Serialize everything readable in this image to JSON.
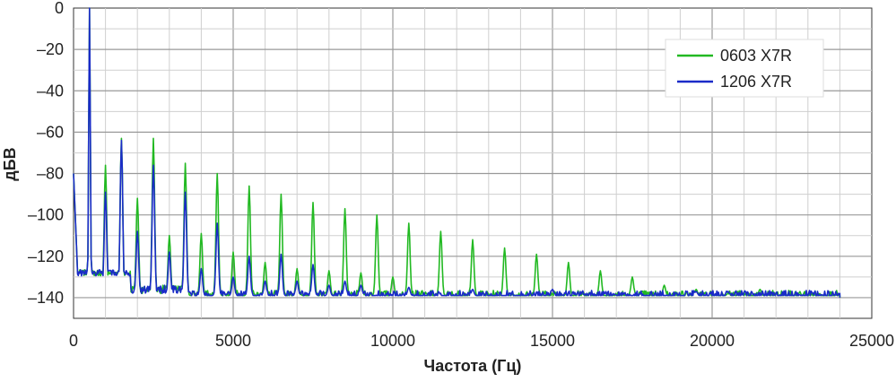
{
  "chart_data": {
    "type": "line",
    "title": "",
    "xlabel": "Частота (Гц)",
    "ylabel": "дБВ",
    "xlim": [
      0,
      25000
    ],
    "ylim": [
      -150,
      0
    ],
    "x_ticks": [
      0,
      5000,
      10000,
      15000,
      20000,
      25000
    ],
    "x_tick_labels": [
      "0",
      "5000",
      "10000",
      "15000",
      "20000",
      "25000"
    ],
    "y_ticks": [
      0,
      -20,
      -40,
      -60,
      -80,
      -100,
      -120,
      -140
    ],
    "y_tick_labels": [
      "0",
      "–20",
      "–40",
      "–60",
      "–80",
      "–100",
      "–120",
      "–140"
    ],
    "grid": true,
    "legend_position": "top-right",
    "noise_floor_db": -139,
    "series": [
      {
        "name": "0603 X7R",
        "color": "#22b922",
        "start": [
          0,
          -80
        ],
        "end": [
          24000,
          -140
        ],
        "peaks": [
          [
            500,
            0
          ],
          [
            1000,
            -76
          ],
          [
            1500,
            -63
          ],
          [
            2000,
            -92
          ],
          [
            2500,
            -63
          ],
          [
            3000,
            -110
          ],
          [
            3500,
            -75
          ],
          [
            4000,
            -109
          ],
          [
            4500,
            -80
          ],
          [
            5000,
            -118
          ],
          [
            5500,
            -86
          ],
          [
            6000,
            -123
          ],
          [
            6500,
            -90
          ],
          [
            7000,
            -126
          ],
          [
            7500,
            -94
          ],
          [
            8000,
            -127
          ],
          [
            8500,
            -97
          ],
          [
            9000,
            -128
          ],
          [
            9500,
            -100
          ],
          [
            10000,
            -130
          ],
          [
            10500,
            -104
          ],
          [
            11500,
            -108
          ],
          [
            12500,
            -112
          ],
          [
            13500,
            -116
          ],
          [
            14500,
            -119
          ],
          [
            15500,
            -123
          ],
          [
            16500,
            -127
          ],
          [
            17500,
            -130
          ],
          [
            18500,
            -134
          ],
          [
            19500,
            -136
          ],
          [
            20500,
            -138
          ],
          [
            21500,
            -136
          ]
        ]
      },
      {
        "name": "1206 X7R",
        "color": "#1a2bc8",
        "start": [
          0,
          -80
        ],
        "end": [
          24000,
          -140
        ],
        "peaks": [
          [
            500,
            0
          ],
          [
            1000,
            -89
          ],
          [
            1500,
            -64
          ],
          [
            2000,
            -108
          ],
          [
            2500,
            -76
          ],
          [
            3000,
            -118
          ],
          [
            3500,
            -89
          ],
          [
            4000,
            -126
          ],
          [
            4500,
            -104
          ],
          [
            5000,
            -130
          ],
          [
            5500,
            -120
          ],
          [
            6000,
            -132
          ],
          [
            6500,
            -119
          ],
          [
            7000,
            -132
          ],
          [
            7500,
            -124
          ],
          [
            8000,
            -134
          ],
          [
            8500,
            -132
          ],
          [
            9000,
            -134
          ],
          [
            10500,
            -135
          ],
          [
            12500,
            -136
          ],
          [
            15000,
            -136
          ],
          [
            19500,
            -137
          ],
          [
            20500,
            -137
          ],
          [
            23800,
            -146
          ]
        ]
      }
    ]
  }
}
